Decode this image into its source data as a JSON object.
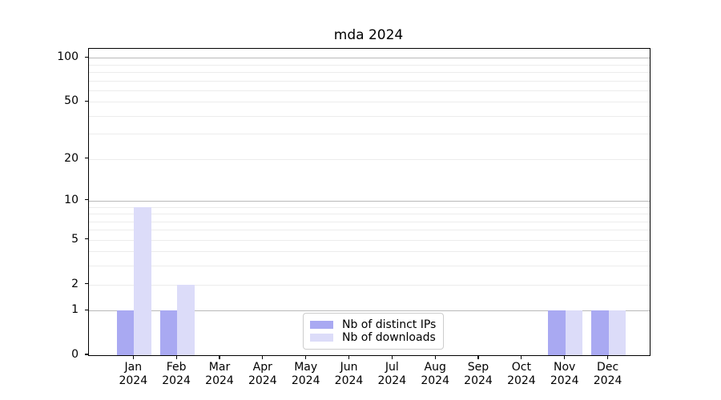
{
  "title": "mda 2024",
  "chart_data": {
    "type": "bar",
    "title": "mda 2024",
    "categories": [
      "Jan",
      "Feb",
      "Mar",
      "Apr",
      "May",
      "Jun",
      "Jul",
      "Aug",
      "Sep",
      "Oct",
      "Nov",
      "Dec"
    ],
    "category_year": "2024",
    "series": [
      {
        "name": "Nb of distinct IPs",
        "color": "#a9a9f2",
        "values": [
          1,
          1,
          0,
          0,
          0,
          0,
          0,
          0,
          0,
          0,
          1,
          1
        ]
      },
      {
        "name": "Nb of downloads",
        "color": "#dcdcf9",
        "values": [
          9,
          2,
          0,
          0,
          0,
          0,
          0,
          0,
          0,
          0,
          1,
          1
        ]
      }
    ],
    "yscale": "log1p",
    "ylim": [
      0,
      115
    ],
    "yticks": [
      0,
      1,
      2,
      5,
      10,
      20,
      50,
      100
    ],
    "major_gridlines": [
      1,
      10,
      100
    ],
    "minor_gridlines": [
      2,
      3,
      4,
      5,
      6,
      7,
      8,
      9,
      20,
      30,
      40,
      50,
      60,
      70,
      80,
      90
    ],
    "grid": true,
    "legend_position": "lower center",
    "xlabel": "",
    "ylabel": ""
  },
  "colors": {
    "background": "#ffffff",
    "bar_distinct_ips": "#a9a9f2",
    "bar_downloads": "#dcdcf9",
    "major_grid": "#b9b9b9",
    "minor_grid": "#ececec",
    "axis_line": "#000000",
    "text": "#000000",
    "legend_border": "#cccccc"
  }
}
